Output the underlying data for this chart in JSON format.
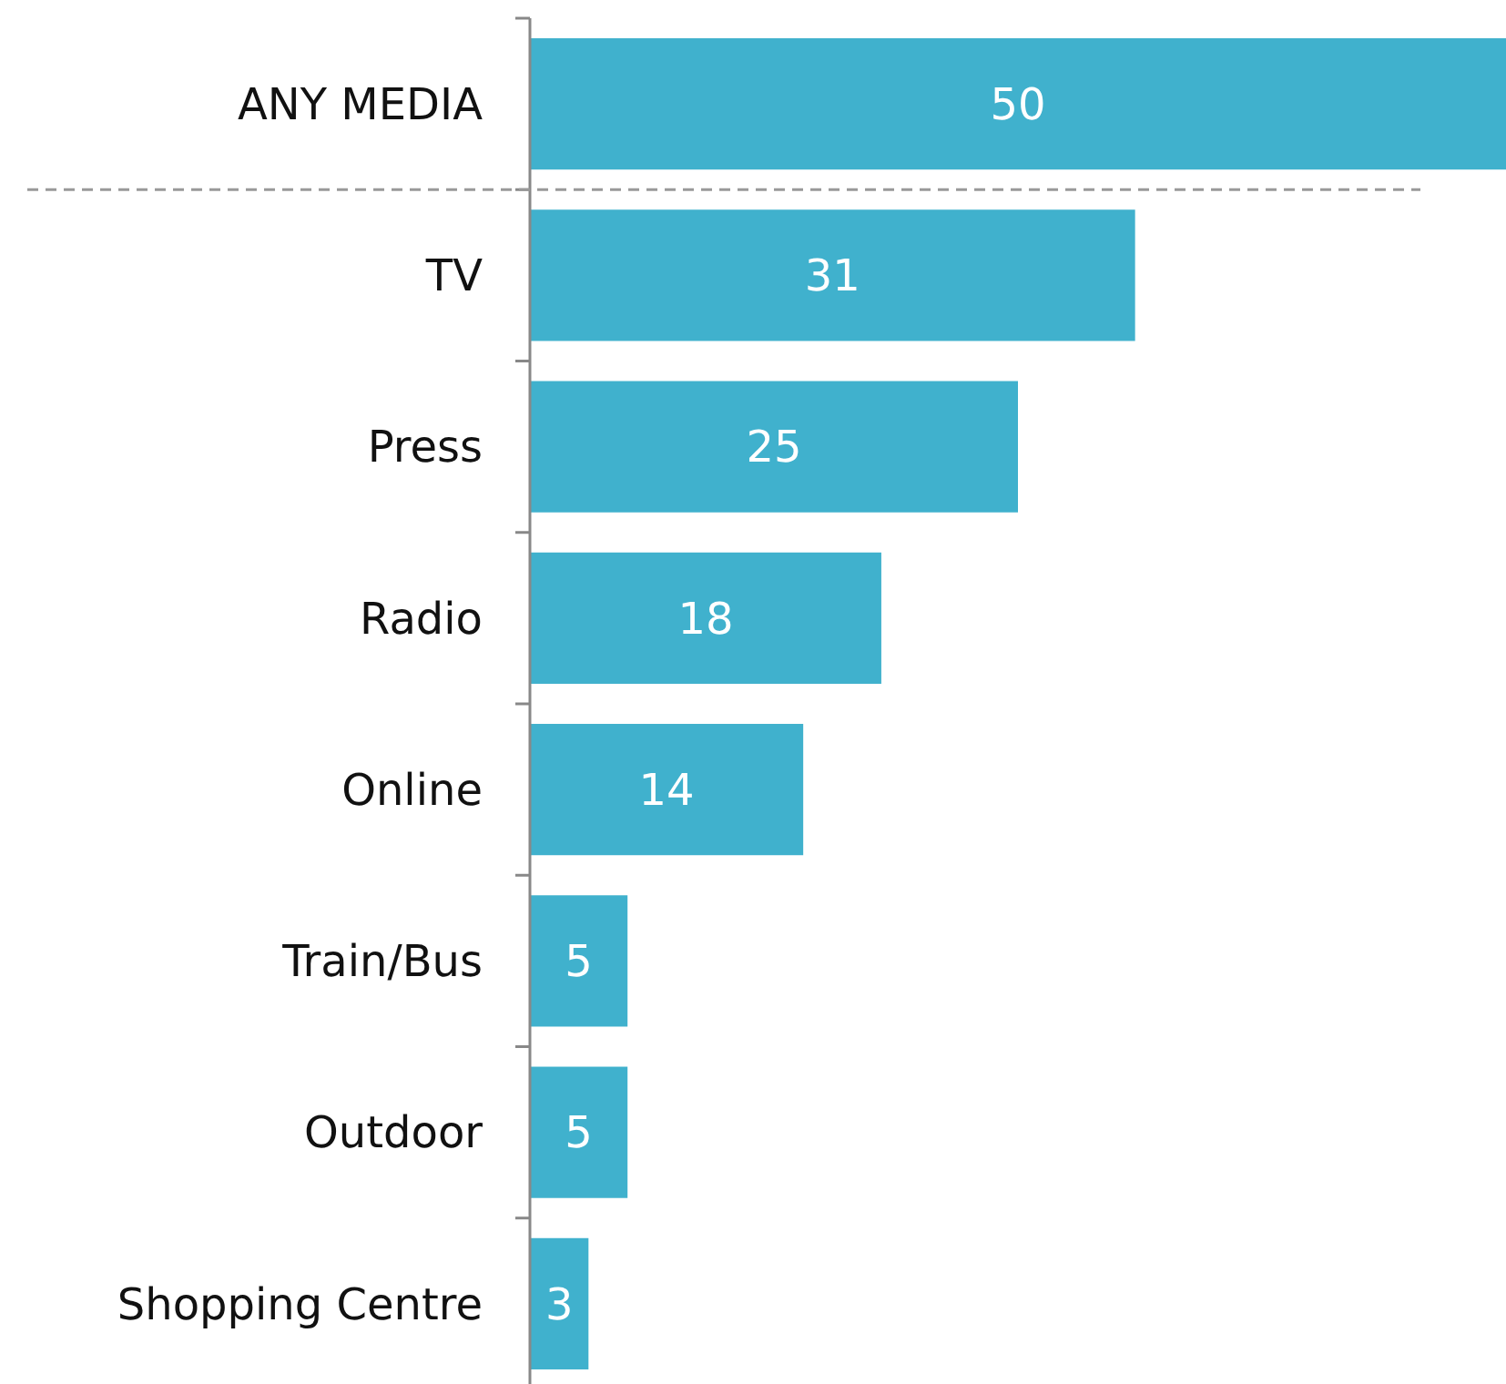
{
  "chart_data": {
    "type": "bar",
    "orientation": "horizontal",
    "categories": [
      "ANY MEDIA",
      "TV",
      "Press",
      "Radio",
      "Online",
      "Train/Bus",
      "Outdoor",
      "Shopping Centre"
    ],
    "values": [
      50,
      31,
      25,
      18,
      14,
      5,
      5,
      3
    ],
    "color": "#40b1cd",
    "data_labels": true,
    "tick_labels": "y"
  }
}
